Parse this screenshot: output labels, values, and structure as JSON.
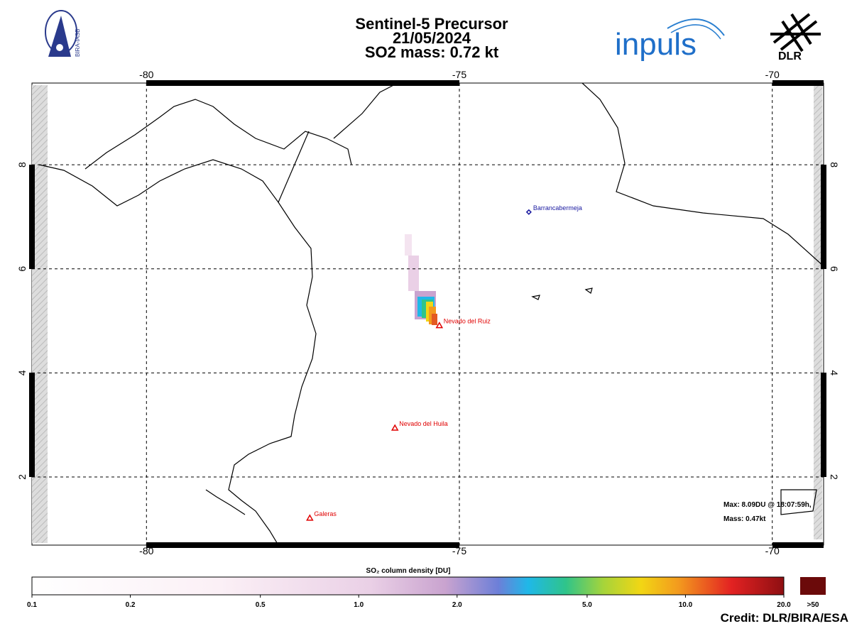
{
  "header": {
    "title": [
      "Sentinel-5 Precursor",
      "21/05/2024",
      "SO2 mass: 0.72   kt"
    ],
    "logos": [
      "BIRA-IASB",
      "inpuls",
      "DLR"
    ]
  },
  "map": {
    "lonlim": [
      -81.83,
      -69.18
    ],
    "latlim": [
      0.69,
      9.57
    ],
    "lon_ticks": [
      -80,
      -75,
      -70
    ],
    "lat_ticks": [
      8,
      6,
      4,
      2
    ],
    "grid": true,
    "places": [
      {
        "name": "Barrancabermeja",
        "lon": -73.89,
        "lat": 7.09,
        "marker": "diamond",
        "color": "#1a1aa0"
      },
      {
        "name": "Nevado del Ruiz",
        "lon": -75.32,
        "lat": 4.91,
        "marker": "triangle",
        "color": "#e00000"
      },
      {
        "name": "Nevado del Huila",
        "lon": -76.03,
        "lat": 2.94,
        "marker": "triangle",
        "color": "#e00000"
      },
      {
        "name": "Galeras",
        "lon": -77.39,
        "lat": 1.21,
        "marker": "triangle",
        "color": "#e00000"
      }
    ],
    "annotation": [
      "Max:   8.09DU @ 18:07:59h,",
      "Mass:  0.47kt"
    ]
  },
  "colorbar": {
    "title": "SO₂ column density [DU]",
    "scale": "log",
    "ticks": [
      {
        "value": 0.1,
        "label": "0.1"
      },
      {
        "value": 0.2,
        "label": "0.2"
      },
      {
        "value": 0.5,
        "label": "0.5"
      },
      {
        "value": 1,
        "label": "1.0"
      },
      {
        "value": 2,
        "label": "2.0"
      },
      {
        "value": 5,
        "label": "5.0"
      },
      {
        "value": 10,
        "label": "10.0"
      },
      {
        "value": 20,
        "label": "20.0"
      }
    ],
    "overflow": {
      "value": 50,
      "label": ">50"
    }
  },
  "credit": "Credit: DLR/BIRA/ESA"
}
